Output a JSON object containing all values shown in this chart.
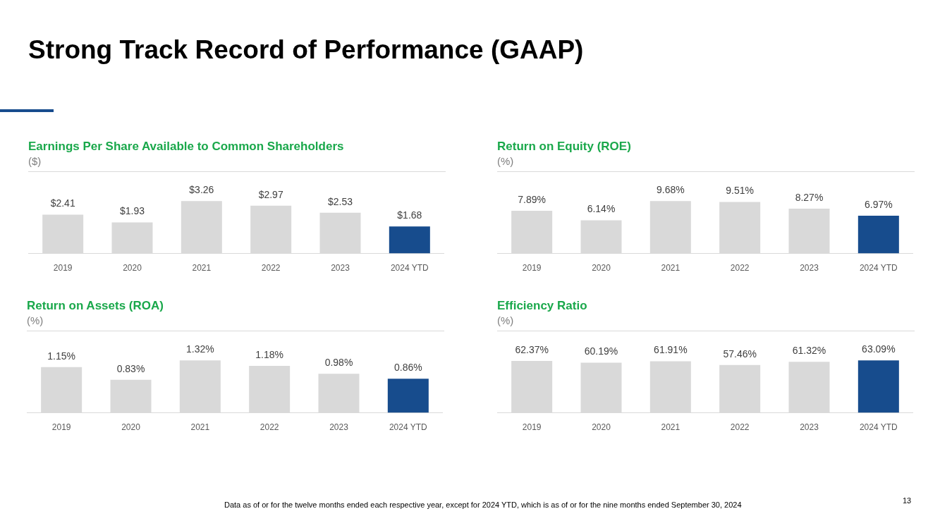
{
  "chart_data": [
    {
      "type": "other",
      "title": "Strong Track Record of Performance (GAAP)",
      "annotations": [
        "Data as of or for the twelve months ended each respective year, except for 2024 YTD, which is as of or for the nine months ended September 30, 2024",
        "13"
      ]
    },
    {
      "type": "bar",
      "title": "Earnings Per Share Available to Common Shareholders",
      "subtitle": "($)",
      "categories": [
        "2019",
        "2020",
        "2021",
        "2022",
        "2023",
        "2024 YTD"
      ],
      "values": [
        2.41,
        1.93,
        3.26,
        2.97,
        2.53,
        1.68
      ],
      "value_labels": [
        "$2.41",
        "$1.93",
        "$3.26",
        "$2.97",
        "$2.53",
        "$1.68"
      ],
      "colors": [
        "#d9d9d9",
        "#d9d9d9",
        "#d9d9d9",
        "#d9d9d9",
        "#d9d9d9",
        "#174c8d"
      ]
    },
    {
      "type": "bar",
      "title": "Return on Equity (ROE)",
      "subtitle": "(%)",
      "categories": [
        "2019",
        "2020",
        "2021",
        "2022",
        "2023",
        "2024 YTD"
      ],
      "values": [
        7.89,
        6.14,
        9.68,
        9.51,
        8.27,
        6.97
      ],
      "value_labels": [
        "7.89%",
        "6.14%",
        "9.68%",
        "9.51%",
        "8.27%",
        "6.97%"
      ],
      "colors": [
        "#d9d9d9",
        "#d9d9d9",
        "#d9d9d9",
        "#d9d9d9",
        "#d9d9d9",
        "#174c8d"
      ]
    },
    {
      "type": "bar",
      "title": "Return on Assets (ROA)",
      "subtitle": "(%)",
      "categories": [
        "2019",
        "2020",
        "2021",
        "2022",
        "2023",
        "2024 YTD"
      ],
      "values": [
        1.15,
        0.83,
        1.32,
        1.18,
        0.98,
        0.86
      ],
      "value_labels": [
        "1.15%",
        "0.83%",
        "1.32%",
        "1.18%",
        "0.98%",
        "0.86%"
      ],
      "colors": [
        "#d9d9d9",
        "#d9d9d9",
        "#d9d9d9",
        "#d9d9d9",
        "#d9d9d9",
        "#174c8d"
      ]
    },
    {
      "type": "bar",
      "title": "Efficiency Ratio",
      "subtitle": "(%)",
      "categories": [
        "2019",
        "2020",
        "2021",
        "2022",
        "2023",
        "2024 YTD"
      ],
      "values": [
        62.37,
        60.19,
        61.91,
        57.46,
        61.32,
        63.09
      ],
      "value_labels": [
        "62.37%",
        "60.19%",
        "61.91%",
        "57.46%",
        "61.32%",
        "63.09%"
      ],
      "colors": [
        "#d9d9d9",
        "#d9d9d9",
        "#d9d9d9",
        "#d9d9d9",
        "#d9d9d9",
        "#174c8d"
      ]
    }
  ]
}
